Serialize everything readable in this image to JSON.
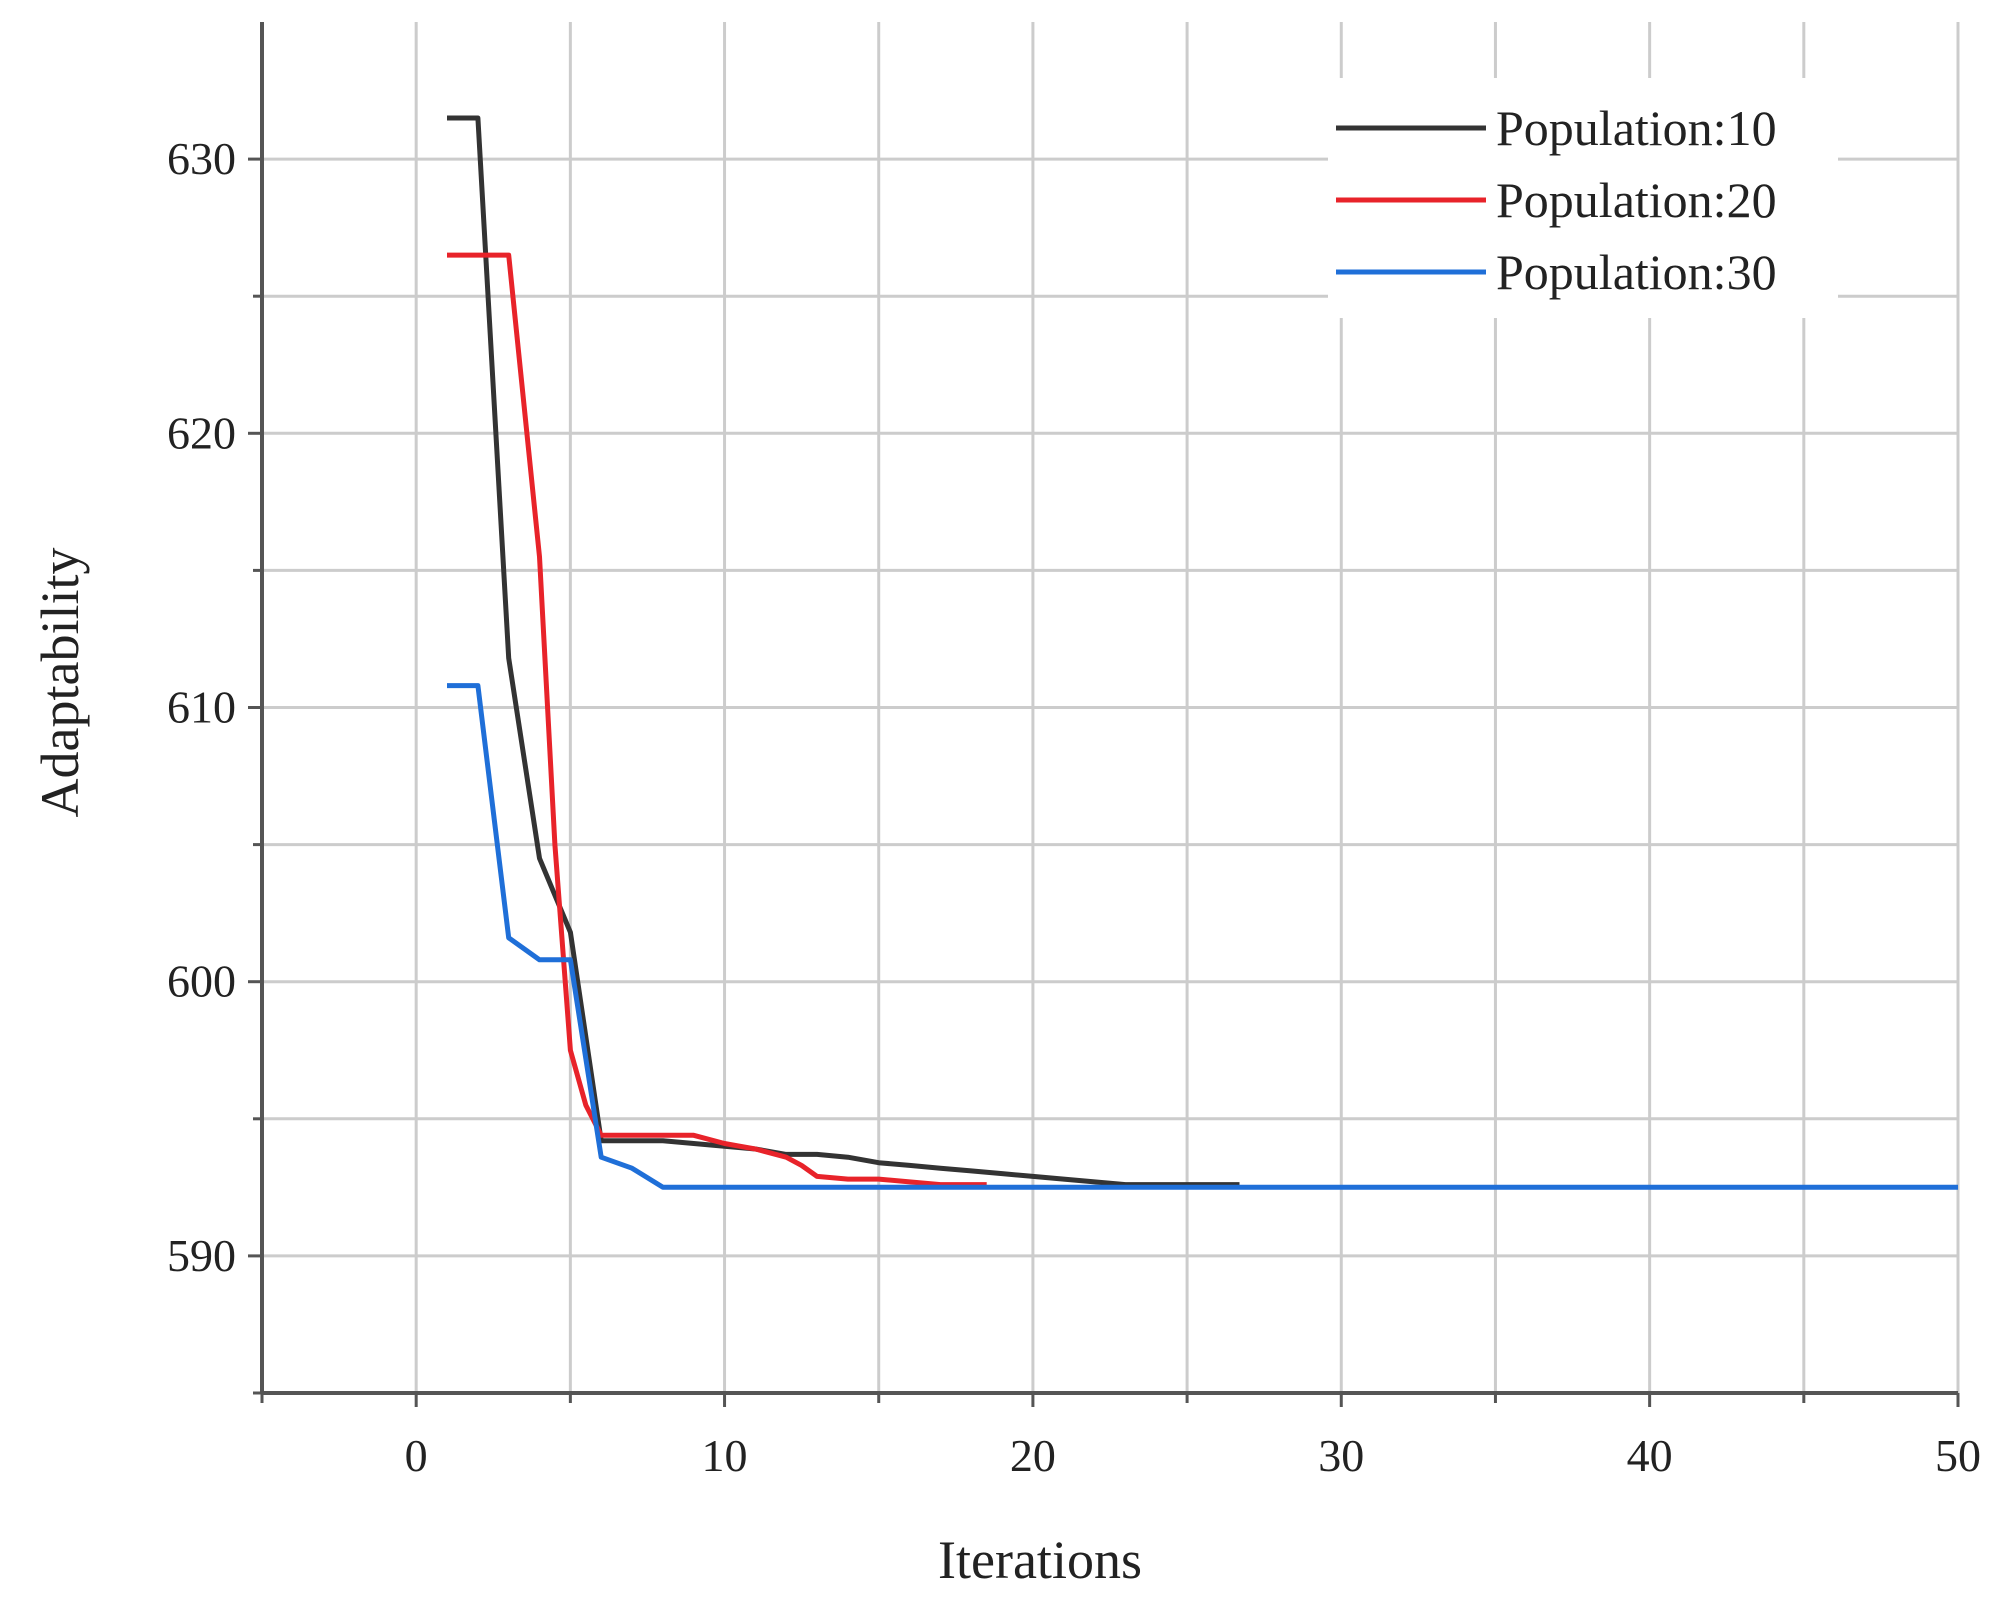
{
  "chart_data": {
    "type": "line",
    "title": "",
    "xlabel": "Iterations",
    "ylabel": "Adaptability",
    "xlim": [
      -5,
      50
    ],
    "ylim": [
      585,
      635
    ],
    "xticks_major": [
      0,
      10,
      20,
      30,
      40,
      50
    ],
    "xticks_minor": [
      -5,
      5,
      15,
      25,
      35,
      45
    ],
    "yticks_major": [
      590,
      600,
      610,
      620,
      630
    ],
    "yticks_minor": [
      585,
      595,
      605,
      615,
      625
    ],
    "grid": true,
    "legend_position": "top-right",
    "series": [
      {
        "name": "Population:10",
        "color": "#333333",
        "x": [
          1,
          2,
          3,
          4,
          5,
          6,
          7,
          8,
          9,
          10,
          11,
          12,
          13,
          14,
          15,
          16,
          17,
          18,
          19,
          20,
          21,
          22,
          23,
          24,
          25,
          26,
          26.7
        ],
        "y": [
          631.5,
          631.5,
          611.8,
          604.5,
          601.8,
          594.2,
          594.2,
          594.2,
          594.1,
          594.0,
          593.9,
          593.7,
          593.7,
          593.6,
          593.4,
          593.3,
          593.2,
          593.1,
          593.0,
          592.9,
          592.8,
          592.7,
          592.6,
          592.6,
          592.6,
          592.6,
          592.6
        ]
      },
      {
        "name": "Population:20",
        "color": "#e8232a",
        "x": [
          1,
          2,
          3,
          4,
          4.5,
          5,
          5.5,
          6,
          7,
          8,
          9,
          10,
          11,
          12,
          12.5,
          13,
          14,
          15,
          16,
          17,
          18,
          18.5
        ],
        "y": [
          626.5,
          626.5,
          626.5,
          615.5,
          605,
          597.5,
          595.5,
          594.4,
          594.4,
          594.4,
          594.4,
          594.1,
          593.9,
          593.6,
          593.3,
          592.9,
          592.8,
          592.8,
          592.7,
          592.6,
          592.6,
          592.6
        ]
      },
      {
        "name": "Population:30",
        "color": "#1f6fd8",
        "x": [
          1,
          2,
          3,
          4,
          5,
          6,
          7,
          8,
          9,
          10,
          20,
          30,
          40,
          50
        ],
        "y": [
          610.8,
          610.8,
          601.6,
          600.8,
          600.8,
          593.6,
          593.2,
          592.5,
          592.5,
          592.5,
          592.5,
          592.5,
          592.5,
          592.5
        ]
      }
    ]
  }
}
